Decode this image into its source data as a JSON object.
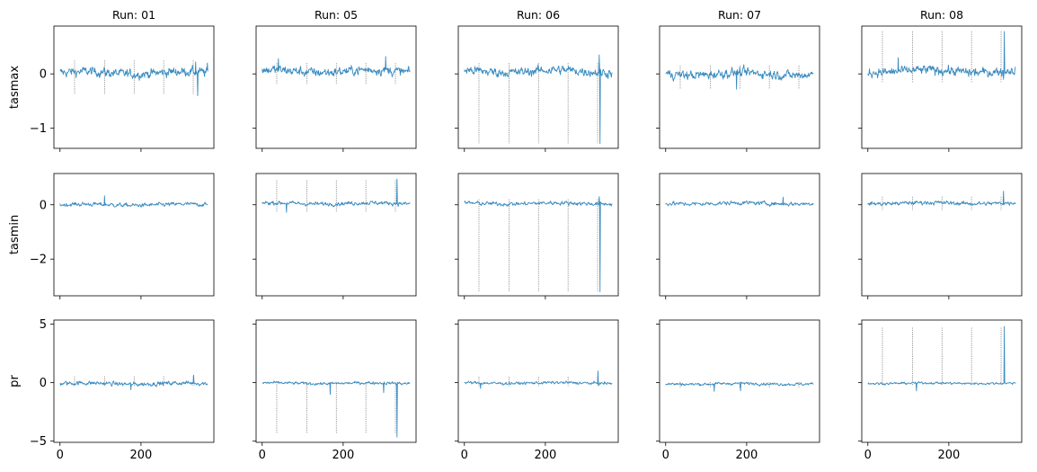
{
  "chart_data": {
    "type": "line",
    "runs": [
      "Run: 01",
      "Run: 05",
      "Run: 06",
      "Run: 07",
      "Run: 08"
    ],
    "variables": [
      {
        "ylabel": "tasmax",
        "ylim": [
          -1.37,
          0.88
        ],
        "yticks": [
          0,
          -1
        ],
        "ytick_labels": [
          "0",
          "−1"
        ]
      },
      {
        "ylabel": "tasmin",
        "ylim": [
          -3.35,
          1.15
        ],
        "yticks": [
          0,
          -2
        ],
        "ytick_labels": [
          "0",
          "−2"
        ]
      },
      {
        "ylabel": "pr",
        "ylim": [
          -5.1,
          5.35
        ],
        "yticks": [
          5,
          0,
          -5
        ],
        "ytick_labels": [
          "5",
          "0",
          "−5"
        ]
      }
    ],
    "xlim": [
      -15,
      380
    ],
    "xticks": [
      0,
      200
    ],
    "xtick_labels": [
      "0",
      "200"
    ],
    "n_days": 366,
    "grid": false,
    "line_color": "#3a8bbf",
    "marker_line_color": "#555555",
    "marker_days": [
      36,
      110,
      183,
      256,
      329
    ],
    "panels": [
      [
        {
          "base": 0.02,
          "noise": 0.07,
          "marker_days": [
            36,
            110,
            183,
            256,
            329
          ],
          "marker_extent": [
            0.25,
            -0.38
          ],
          "spikes": [
            {
              "day": 340,
              "value": -0.4
            },
            {
              "day": 335,
              "value": 0.22
            },
            {
              "day": 364,
              "value": 0.2
            }
          ]
        },
        {
          "base": 0.0,
          "noise": 0.06,
          "marker_days": [],
          "marker_extent": [
            0,
            0
          ],
          "spikes": [
            {
              "day": 110,
              "value": 0.33
            }
          ]
        },
        {
          "base": -0.08,
          "noise": 0.15,
          "marker_days": [
            36,
            110,
            183,
            256,
            329
          ],
          "marker_extent": [
            0.55,
            -0.3
          ],
          "spikes": [
            {
              "day": 330,
              "value": 0.65
            },
            {
              "day": 175,
              "value": -0.6
            }
          ]
        }
      ],
      [
        {
          "base": 0.05,
          "noise": 0.07,
          "marker_days": [
            36,
            110,
            183,
            256,
            329
          ],
          "marker_extent": [
            0.2,
            -0.2
          ],
          "spikes": [
            {
              "day": 305,
              "value": 0.32
            },
            {
              "day": 40,
              "value": 0.28
            }
          ]
        },
        {
          "base": 0.05,
          "noise": 0.06,
          "marker_days": [
            36,
            110,
            183,
            256,
            329
          ],
          "marker_extent": [
            0.9,
            -0.25
          ],
          "spikes": [
            {
              "day": 333,
              "value": 0.95
            },
            {
              "day": 60,
              "value": -0.28
            }
          ]
        },
        {
          "base": -0.05,
          "noise": 0.1,
          "marker_days": [
            36,
            110,
            183,
            256,
            329
          ],
          "marker_extent": [
            0.05,
            -4.3
          ],
          "spikes": [
            {
              "day": 333,
              "value": -4.65
            },
            {
              "day": 168,
              "value": -1.0
            },
            {
              "day": 300,
              "value": -0.85
            }
          ]
        }
      ],
      [
        {
          "base": 0.05,
          "noise": 0.07,
          "marker_days": [
            36,
            110,
            183,
            256,
            329
          ],
          "marker_extent": [
            0.2,
            -1.28
          ],
          "spikes": [
            {
              "day": 335,
              "value": -1.28
            },
            {
              "day": 333,
              "value": 0.35
            }
          ]
        },
        {
          "base": 0.05,
          "noise": 0.06,
          "marker_days": [
            36,
            110,
            183,
            256,
            329
          ],
          "marker_extent": [
            0.2,
            -3.2
          ],
          "spikes": [
            {
              "day": 335,
              "value": -3.2
            },
            {
              "day": 333,
              "value": 0.3
            }
          ]
        },
        {
          "base": -0.03,
          "noise": 0.1,
          "marker_days": [
            36,
            110,
            183,
            256,
            329
          ],
          "marker_extent": [
            0.5,
            -0.3
          ],
          "spikes": [
            {
              "day": 330,
              "value": 1.0
            },
            {
              "day": 40,
              "value": -0.5
            }
          ]
        }
      ],
      [
        {
          "base": 0.0,
          "noise": 0.07,
          "marker_days": [
            36,
            110,
            183,
            256,
            329
          ],
          "marker_extent": [
            0.15,
            -0.28
          ],
          "spikes": [
            {
              "day": 175,
              "value": -0.28
            }
          ]
        },
        {
          "base": 0.05,
          "noise": 0.06,
          "marker_days": [],
          "marker_extent": [
            0,
            0
          ],
          "spikes": [
            {
              "day": 290,
              "value": 0.28
            }
          ]
        },
        {
          "base": -0.1,
          "noise": 0.1,
          "marker_days": [
            36,
            110,
            183,
            256,
            329
          ],
          "marker_extent": [
            0.05,
            -0.4
          ],
          "spikes": [
            {
              "day": 120,
              "value": -0.75
            },
            {
              "day": 185,
              "value": -0.7
            }
          ]
        }
      ],
      [
        {
          "base": 0.05,
          "noise": 0.07,
          "marker_days": [
            36,
            110,
            183,
            256,
            329
          ],
          "marker_extent": [
            0.78,
            -0.15
          ],
          "spikes": [
            {
              "day": 337,
              "value": 0.78
            },
            {
              "day": 335,
              "value": -0.1
            },
            {
              "day": 75,
              "value": 0.3
            }
          ]
        },
        {
          "base": 0.06,
          "noise": 0.06,
          "marker_days": [
            36,
            110,
            183,
            256,
            329
          ],
          "marker_extent": [
            0.3,
            -0.2
          ],
          "spikes": [
            {
              "day": 335,
              "value": 0.5
            }
          ]
        },
        {
          "base": -0.05,
          "noise": 0.08,
          "marker_days": [
            36,
            110,
            183,
            256,
            329
          ],
          "marker_extent": [
            4.7,
            -0.2
          ],
          "spikes": [
            {
              "day": 337,
              "value": 4.8
            },
            {
              "day": 120,
              "value": -0.7
            }
          ]
        }
      ]
    ]
  }
}
